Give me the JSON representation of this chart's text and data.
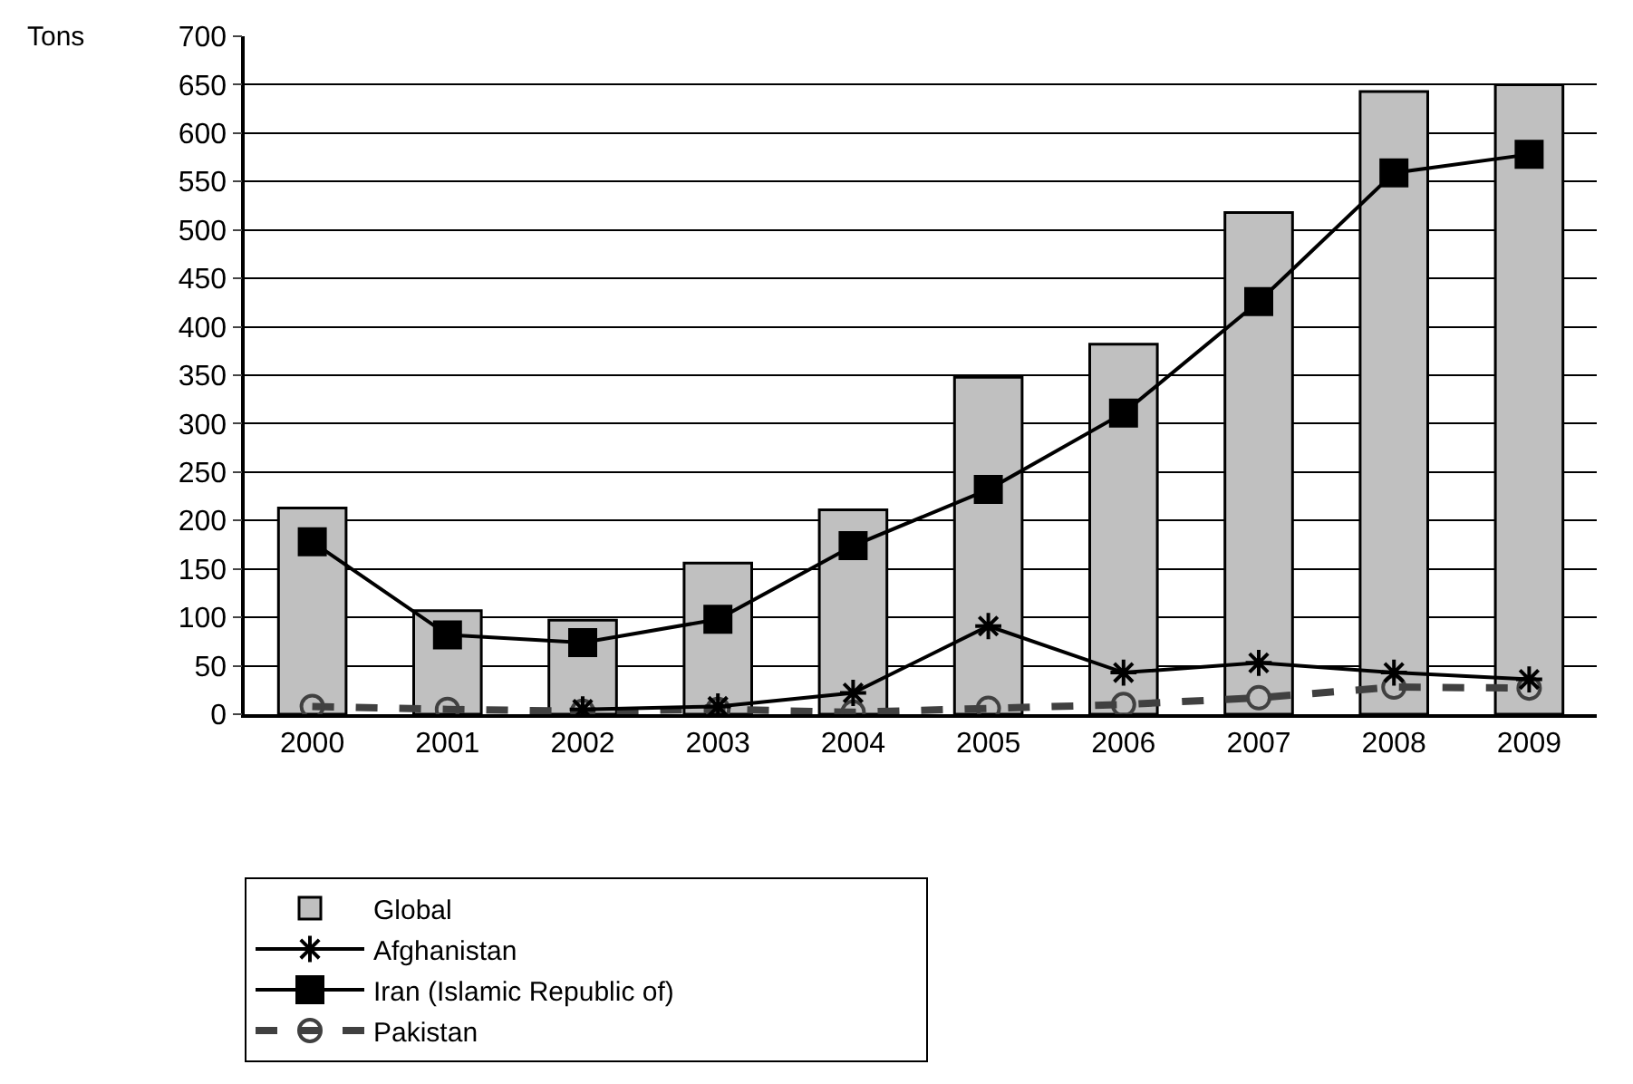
{
  "chart_data": {
    "type": "bar",
    "ylabel": "Tons",
    "categories": [
      "2000",
      "2001",
      "2002",
      "2003",
      "2004",
      "2005",
      "2006",
      "2007",
      "2008",
      "2009"
    ],
    "series": [
      {
        "name": "Global",
        "color": "#c0c0c0",
        "values": [
          213,
          107,
          97,
          156,
          211,
          348,
          382,
          518,
          643,
          650
        ]
      },
      {
        "name": "Afghanistan",
        "type": "line",
        "color": "#000000",
        "marker": "cross",
        "line_style": "solid",
        "values": [
          null,
          null,
          5,
          8,
          22,
          91,
          43,
          53,
          43,
          36
        ]
      },
      {
        "name": "Iran (Islamic Republic of)",
        "type": "line",
        "color": "#000000",
        "marker": "square",
        "line_style": "solid",
        "values": [
          178,
          82,
          74,
          98,
          174,
          232,
          311,
          426,
          559,
          578
        ]
      },
      {
        "name": "Pakistan",
        "type": "line",
        "color": "#404040",
        "marker": "circle",
        "line_style": "dashed",
        "values": [
          8,
          5,
          3,
          5,
          2,
          6,
          10,
          17,
          28,
          27
        ]
      }
    ],
    "ylim": [
      0,
      700
    ],
    "yticks": [
      0,
      50,
      100,
      150,
      200,
      250,
      300,
      350,
      400,
      450,
      500,
      550,
      600,
      650,
      700
    ],
    "grid": "y",
    "legend": "bottom"
  }
}
